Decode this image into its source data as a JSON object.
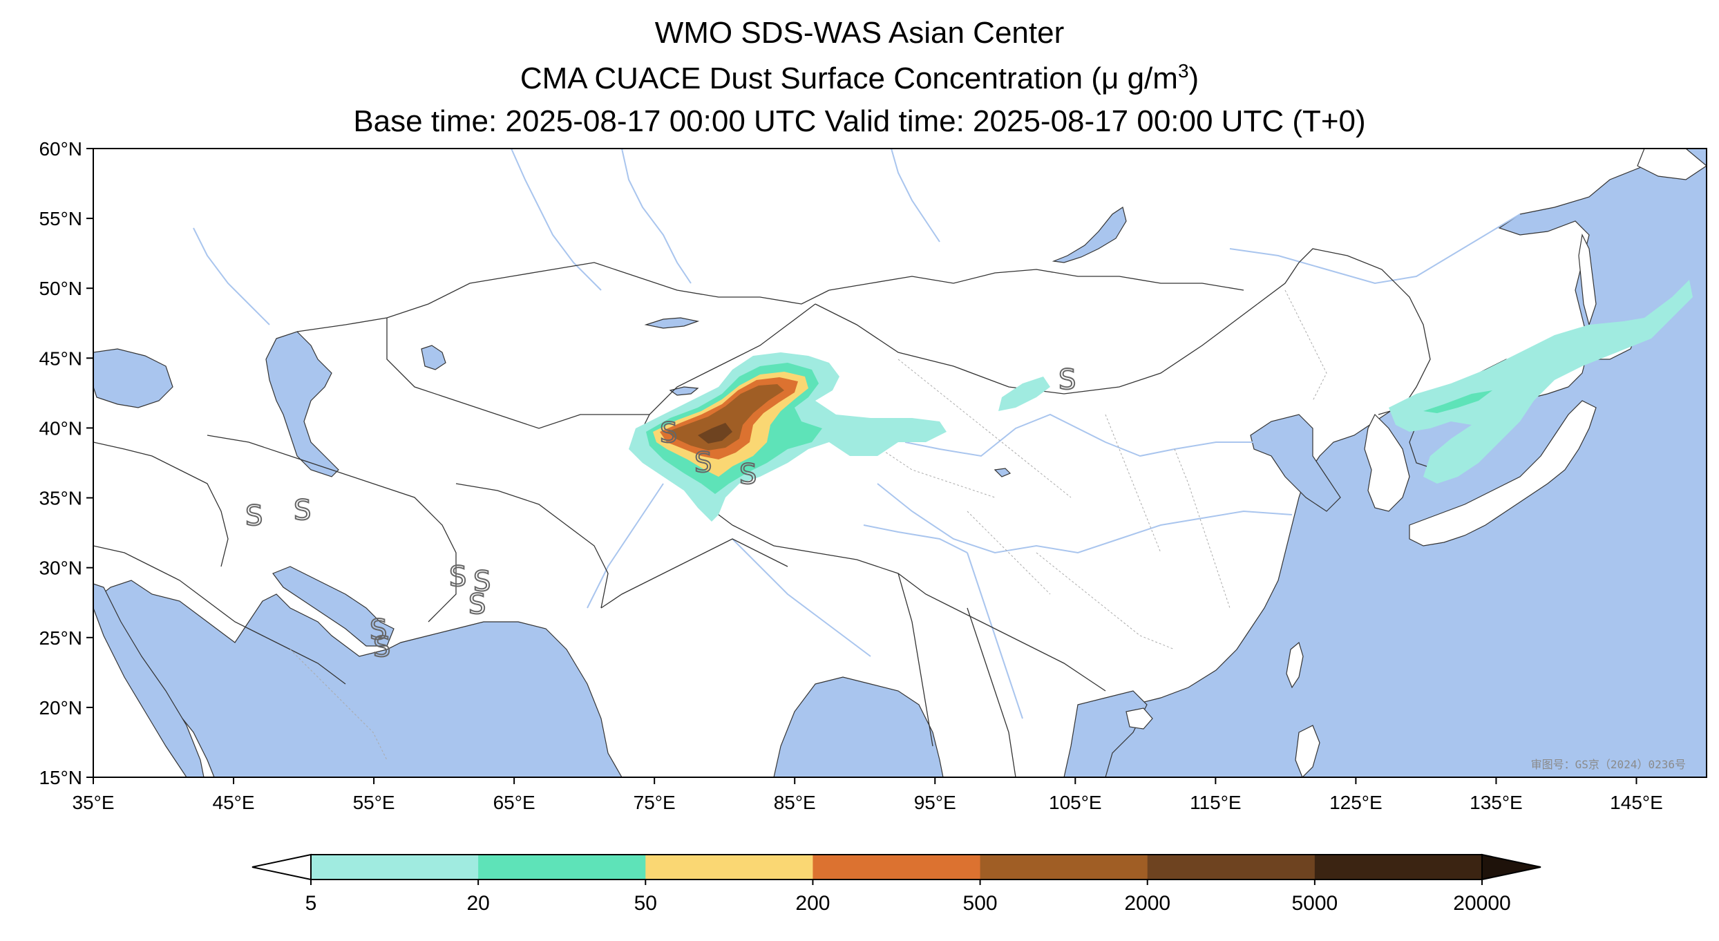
{
  "title": {
    "line1": "WMO SDS-WAS Asian Center",
    "line2_main": "CMA CUACE Dust Surface Concentration (μ g/m",
    "line2_sup": "3",
    "line2_end": ")",
    "line3": "Base time: 2025-08-17 00:00 UTC Valid time: 2025-08-17 00:00 UTC (T+0)"
  },
  "axes": {
    "lon_ticks": [
      "35°E",
      "45°E",
      "55°E",
      "65°E",
      "75°E",
      "85°E",
      "95°E",
      "105°E",
      "115°E",
      "125°E",
      "135°E",
      "145°E"
    ],
    "lat_ticks": [
      "60°N",
      "55°N",
      "50°N",
      "45°N",
      "40°N",
      "35°N",
      "30°N",
      "25°N",
      "20°N",
      "15°N"
    ],
    "lon_range": [
      35,
      150
    ],
    "lat_range": [
      15,
      60
    ]
  },
  "colorbar": {
    "labels": [
      "5",
      "20",
      "50",
      "200",
      "500",
      "2000",
      "5000",
      "20000"
    ],
    "colors": [
      "#a0ebe0",
      "#5ee3b8",
      "#fad773",
      "#dc7230",
      "#a05e25",
      "#6e4320",
      "#3b2412",
      "#1e120a"
    ],
    "extend": "both"
  },
  "colors": {
    "ocean": "#a9c5ee",
    "land": "#ffffff",
    "river": "#a9c5ee",
    "border": "#333333"
  },
  "watermark": "审图号：GS京（2024）0236号"
}
